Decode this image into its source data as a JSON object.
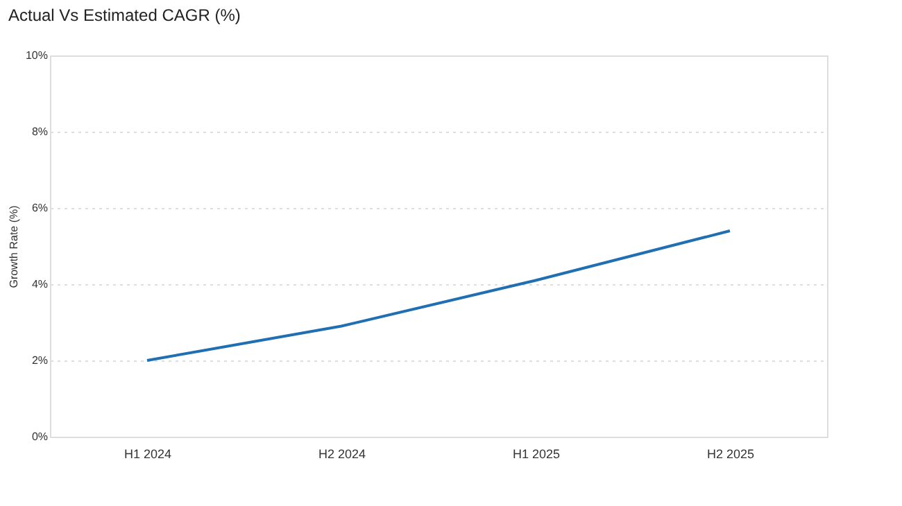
{
  "chart_data": {
    "type": "line",
    "title": "Actual Vs Estimated CAGR (%)",
    "ylabel": "Growth Rate (%)",
    "categories": [
      "H1 2024",
      "H2 2024",
      "H1 2025",
      "H2 2025"
    ],
    "series": [
      {
        "color": "#1f6fb2",
        "values": [
          2.0,
          2.9,
          4.1,
          5.4
        ]
      }
    ],
    "ylim": [
      0,
      10
    ],
    "yticks": [
      {
        "value": 0,
        "label": "0%"
      },
      {
        "value": 2,
        "label": "2%"
      },
      {
        "value": 4,
        "label": "4%"
      },
      {
        "value": 6,
        "label": "6%"
      },
      {
        "value": 8,
        "label": "8%"
      },
      {
        "value": 10,
        "label": "10%"
      }
    ],
    "grid": "y",
    "legend": false,
    "marker": "none",
    "line_style": "solid"
  }
}
